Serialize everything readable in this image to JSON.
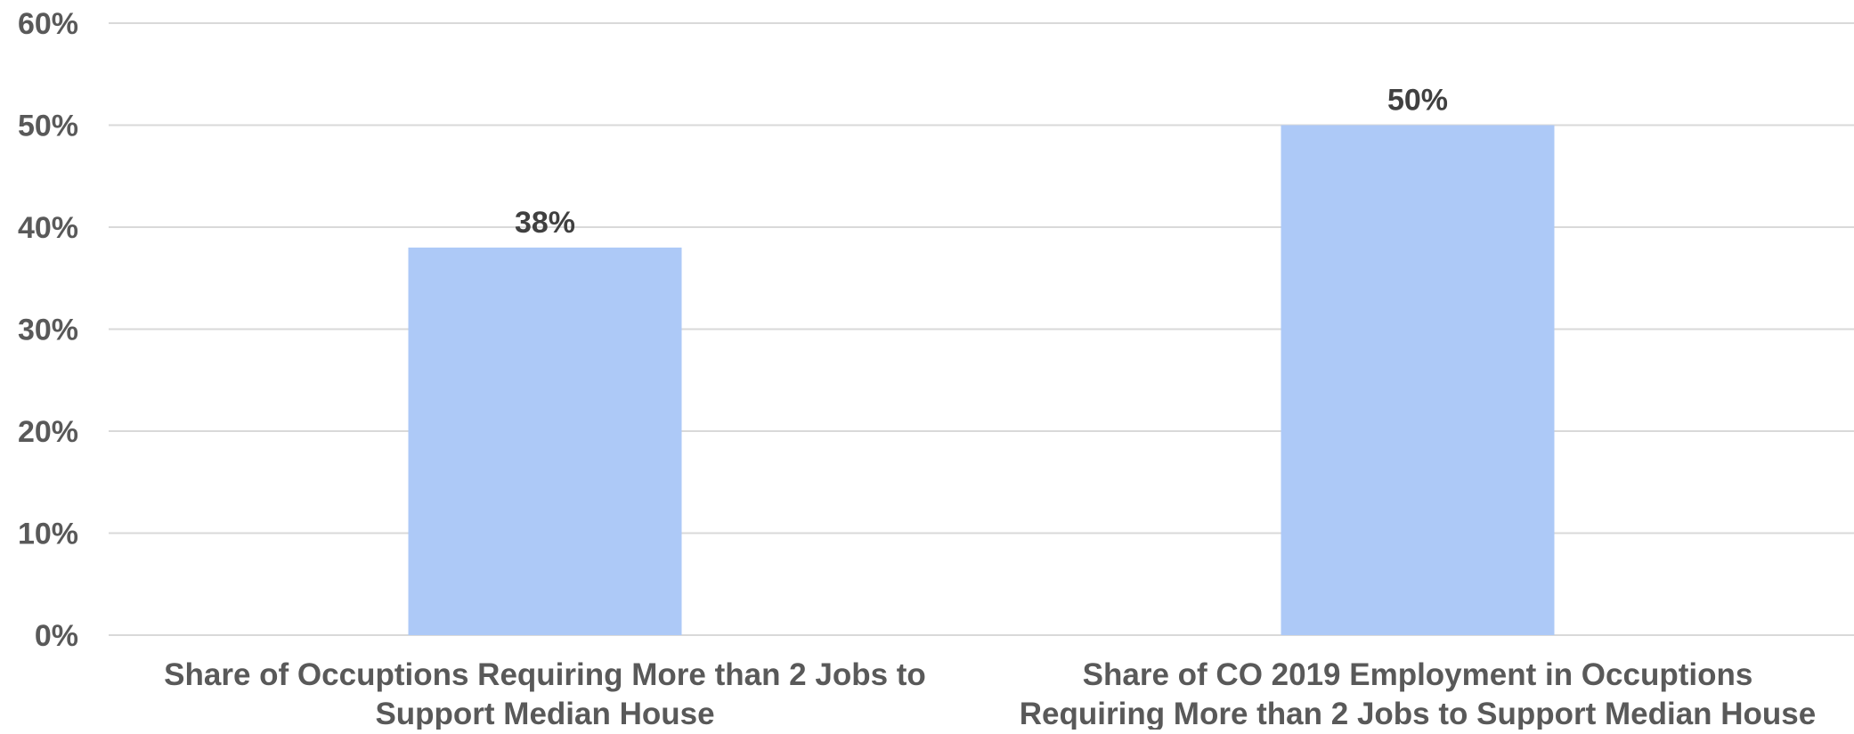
{
  "chart_data": {
    "type": "bar",
    "categories": [
      [
        "Share of Occuptions Requiring More than 2 Jobs to",
        "Support Median House"
      ],
      [
        "Share of CO 2019 Employment in Occuptions",
        "Requiring More than 2 Jobs to Support Median House"
      ]
    ],
    "values": [
      38,
      50
    ],
    "data_labels": [
      "38%",
      "50%"
    ],
    "yticks": [
      0,
      10,
      20,
      30,
      40,
      50,
      60
    ],
    "ytick_labels": [
      "0%",
      "10%",
      "20%",
      "30%",
      "40%",
      "50%",
      "60%"
    ],
    "ylim": [
      0,
      60
    ],
    "title": "",
    "xlabel": "",
    "ylabel": "",
    "grid": true,
    "legend": "none",
    "bar_color": "#adc9f7"
  }
}
